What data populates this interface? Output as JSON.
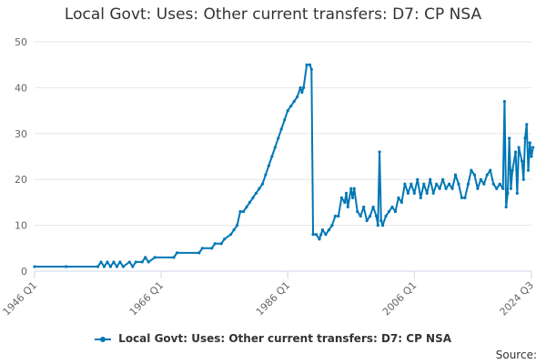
{
  "chart_data": {
    "type": "line",
    "title": "Local Govt: Uses: Other current transfers: D7: CP NSA",
    "xlabel": "",
    "ylabel": "",
    "ylim": [
      0,
      50
    ],
    "yticks": [
      0,
      10,
      20,
      30,
      40,
      50
    ],
    "xticks": [
      "1946 Q1",
      "1966 Q1",
      "1986 Q1",
      "2006 Q1",
      "2024 Q3"
    ],
    "grid": "horizontal",
    "legend_position": "bottom",
    "color": "#0077b5",
    "series": [
      {
        "name": "Local Govt: Uses: Other current transfers: D7: CP NSA",
        "points": [
          [
            "1946 Q1",
            1
          ],
          [
            "1951 Q1",
            1
          ],
          [
            "1956 Q1",
            1
          ],
          [
            "1956 Q3",
            2
          ],
          [
            "1957 Q1",
            1
          ],
          [
            "1957 Q3",
            2
          ],
          [
            "1958 Q1",
            1
          ],
          [
            "1958 Q3",
            2
          ],
          [
            "1959 Q1",
            1
          ],
          [
            "1959 Q3",
            2
          ],
          [
            "1960 Q1",
            1
          ],
          [
            "1961 Q1",
            2
          ],
          [
            "1961 Q3",
            1
          ],
          [
            "1962 Q1",
            2
          ],
          [
            "1963 Q1",
            2
          ],
          [
            "1963 Q3",
            3
          ],
          [
            "1964 Q1",
            2
          ],
          [
            "1965 Q1",
            3
          ],
          [
            "1968 Q1",
            3
          ],
          [
            "1968 Q3",
            4
          ],
          [
            "1972 Q1",
            4
          ],
          [
            "1972 Q3",
            5
          ],
          [
            "1974 Q1",
            5
          ],
          [
            "1974 Q3",
            6
          ],
          [
            "1975 Q3",
            6
          ],
          [
            "1976 Q1",
            7
          ],
          [
            "1977 Q1",
            8
          ],
          [
            "1977 Q3",
            9
          ],
          [
            "1978 Q1",
            10
          ],
          [
            "1978 Q3",
            13
          ],
          [
            "1979 Q1",
            13
          ],
          [
            "1979 Q3",
            14
          ],
          [
            "1980 Q1",
            15
          ],
          [
            "1980 Q3",
            16
          ],
          [
            "1981 Q1",
            17
          ],
          [
            "1981 Q3",
            18
          ],
          [
            "1982 Q1",
            19
          ],
          [
            "1982 Q3",
            21
          ],
          [
            "1983 Q1",
            23
          ],
          [
            "1983 Q3",
            25
          ],
          [
            "1984 Q1",
            27
          ],
          [
            "1984 Q3",
            29
          ],
          [
            "1985 Q1",
            31
          ],
          [
            "1985 Q3",
            33
          ],
          [
            "1986 Q1",
            35
          ],
          [
            "1986 Q3",
            36
          ],
          [
            "1987 Q1",
            37
          ],
          [
            "1987 Q3",
            38
          ],
          [
            "1988 Q1",
            40
          ],
          [
            "1988 Q2",
            39
          ],
          [
            "1988 Q3",
            40
          ],
          [
            "1989 Q1",
            45
          ],
          [
            "1989 Q3",
            45
          ],
          [
            "1989 Q4",
            44
          ],
          [
            "1990 Q1",
            8
          ],
          [
            "1990 Q3",
            8
          ],
          [
            "1991 Q1",
            7
          ],
          [
            "1991 Q2",
            8
          ],
          [
            "1991 Q3",
            9
          ],
          [
            "1992 Q1",
            8
          ],
          [
            "1992 Q3",
            9
          ],
          [
            "1993 Q1",
            10
          ],
          [
            "1993 Q3",
            12
          ],
          [
            "1994 Q1",
            12
          ],
          [
            "1994 Q3",
            16
          ],
          [
            "1995 Q1",
            15
          ],
          [
            "1995 Q2",
            17
          ],
          [
            "1995 Q3",
            14
          ],
          [
            "1996 Q1",
            18
          ],
          [
            "1996 Q2",
            16
          ],
          [
            "1996 Q3",
            18
          ],
          [
            "1997 Q1",
            13
          ],
          [
            "1997 Q3",
            12
          ],
          [
            "1998 Q1",
            14
          ],
          [
            "1998 Q3",
            11
          ],
          [
            "1999 Q1",
            12
          ],
          [
            "1999 Q3",
            14
          ],
          [
            "2000 Q1",
            12
          ],
          [
            "2000 Q2",
            10
          ],
          [
            "2000 Q3",
            26
          ],
          [
            "2000 Q4",
            11
          ],
          [
            "2001 Q1",
            10
          ],
          [
            "2001 Q3",
            12
          ],
          [
            "2002 Q1",
            13
          ],
          [
            "2002 Q3",
            14
          ],
          [
            "2003 Q1",
            13
          ],
          [
            "2003 Q3",
            16
          ],
          [
            "2004 Q1",
            15
          ],
          [
            "2004 Q3",
            19
          ],
          [
            "2005 Q1",
            17
          ],
          [
            "2005 Q3",
            19
          ],
          [
            "2006 Q1",
            17
          ],
          [
            "2006 Q3",
            20
          ],
          [
            "2007 Q1",
            16
          ],
          [
            "2007 Q3",
            19
          ],
          [
            "2008 Q1",
            17
          ],
          [
            "2008 Q3",
            20
          ],
          [
            "2009 Q1",
            17
          ],
          [
            "2009 Q3",
            19
          ],
          [
            "2010 Q1",
            18
          ],
          [
            "2010 Q3",
            20
          ],
          [
            "2011 Q1",
            18
          ],
          [
            "2011 Q3",
            19
          ],
          [
            "2012 Q1",
            18
          ],
          [
            "2012 Q3",
            21
          ],
          [
            "2013 Q1",
            19
          ],
          [
            "2013 Q3",
            16
          ],
          [
            "2014 Q1",
            16
          ],
          [
            "2014 Q3",
            19
          ],
          [
            "2015 Q1",
            22
          ],
          [
            "2015 Q3",
            21
          ],
          [
            "2016 Q1",
            18
          ],
          [
            "2016 Q3",
            20
          ],
          [
            "2017 Q1",
            19
          ],
          [
            "2017 Q3",
            21
          ],
          [
            "2018 Q1",
            22
          ],
          [
            "2018 Q3",
            19
          ],
          [
            "2019 Q1",
            18
          ],
          [
            "2019 Q3",
            19
          ],
          [
            "2020 Q1",
            18
          ],
          [
            "2020 Q2",
            37
          ],
          [
            "2020 Q3",
            14
          ],
          [
            "2020 Q4",
            17
          ],
          [
            "2021 Q1",
            29
          ],
          [
            "2021 Q2",
            18
          ],
          [
            "2021 Q3",
            22
          ],
          [
            "2022 Q1",
            26
          ],
          [
            "2022 Q2",
            17
          ],
          [
            "2022 Q3",
            27
          ],
          [
            "2023 Q1",
            24
          ],
          [
            "2023 Q2",
            20
          ],
          [
            "2023 Q3",
            29
          ],
          [
            "2023 Q4",
            32
          ],
          [
            "2024 Q1",
            22
          ],
          [
            "2024 Q2",
            28
          ],
          [
            "2024 Q3",
            25
          ],
          [
            "2024 Q4",
            27
          ]
        ]
      }
    ]
  },
  "legend": {
    "label": "Local Govt: Uses: Other current transfers: D7: CP NSA"
  },
  "footer": {
    "source_label": "Source:"
  }
}
